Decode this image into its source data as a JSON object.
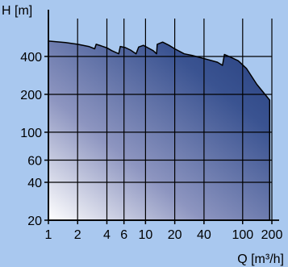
{
  "chart_data": {
    "type": "area",
    "title": "",
    "xlabel": "Q [m³/h]",
    "ylabel": "H [m]",
    "x_scale": "log",
    "y_scale": "log",
    "xlim": [
      1,
      200
    ],
    "ylim": [
      20,
      800
    ],
    "x_ticks": [
      1,
      2,
      4,
      6,
      10,
      20,
      40,
      100,
      200
    ],
    "y_ticks": [
      20,
      40,
      60,
      100,
      200,
      400
    ],
    "grid": true,
    "legend": "none",
    "series": [
      {
        "values": [
          [
            1,
            530
          ],
          [
            1.5,
            515
          ],
          [
            2,
            500
          ],
          [
            2.6,
            480
          ],
          [
            3,
            460
          ],
          [
            3.1,
            500
          ],
          [
            3.5,
            485
          ],
          [
            4,
            468
          ],
          [
            4.5,
            445
          ],
          [
            5.3,
            420
          ],
          [
            5.5,
            480
          ],
          [
            6.2,
            470
          ],
          [
            7,
            450
          ],
          [
            8,
            420
          ],
          [
            8.5,
            475
          ],
          [
            9.5,
            490
          ],
          [
            10.5,
            470
          ],
          [
            12,
            445
          ],
          [
            13,
            420
          ],
          [
            13.2,
            500
          ],
          [
            15,
            520
          ],
          [
            17.5,
            490
          ],
          [
            20,
            460
          ],
          [
            25,
            420
          ],
          [
            30,
            408
          ],
          [
            40,
            385
          ],
          [
            55,
            360
          ],
          [
            62,
            340
          ],
          [
            65,
            415
          ],
          [
            75,
            395
          ],
          [
            90,
            370
          ],
          [
            110,
            320
          ],
          [
            140,
            240
          ],
          [
            170,
            200
          ],
          [
            190,
            180
          ],
          [
            190,
            20
          ],
          [
            1,
            20
          ]
        ]
      }
    ],
    "colors": {
      "background": "#a9c8ef",
      "fill_dark": "#2c4685",
      "fill_light": "#ffffff",
      "outline": "#000000",
      "grid": "#000000"
    }
  }
}
